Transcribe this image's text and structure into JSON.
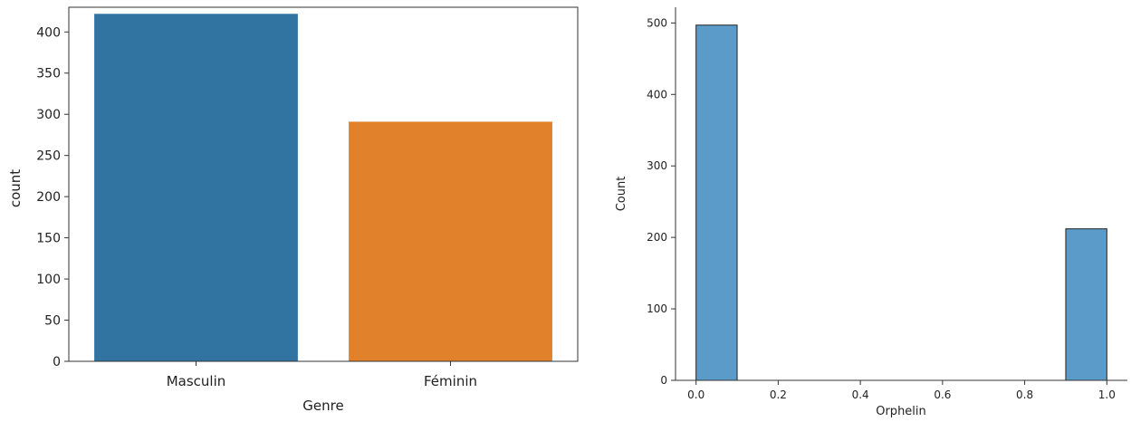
{
  "chart_data": [
    {
      "type": "bar",
      "categories": [
        "Masculin",
        "Féminin"
      ],
      "values": [
        422,
        291
      ],
      "xlabel": "Genre",
      "ylabel": "count",
      "ylim": [
        0,
        430
      ],
      "yticks": [
        "0",
        "50",
        "100",
        "150",
        "200",
        "250",
        "300",
        "350",
        "400"
      ],
      "colors": [
        "#3274a1",
        "#e1812c"
      ],
      "grid": false,
      "legend": "none"
    },
    {
      "type": "bar",
      "subtype": "histogram",
      "x": [
        0.0,
        1.0
      ],
      "bin_edges": [
        [
          0.0,
          0.1
        ],
        [
          0.9,
          1.0
        ]
      ],
      "values": [
        497,
        212
      ],
      "xlabel": "Orphelin",
      "ylabel": "Count",
      "xlim": [
        -0.05,
        1.05
      ],
      "ylim": [
        0,
        522
      ],
      "xticks": [
        "0.0",
        "0.2",
        "0.4",
        "0.6",
        "0.8",
        "1.0"
      ],
      "yticks": [
        "0",
        "100",
        "200",
        "300",
        "400",
        "500"
      ],
      "color": "#5a9bc9",
      "edge_color": "#222222",
      "grid": false,
      "legend": "none"
    }
  ]
}
